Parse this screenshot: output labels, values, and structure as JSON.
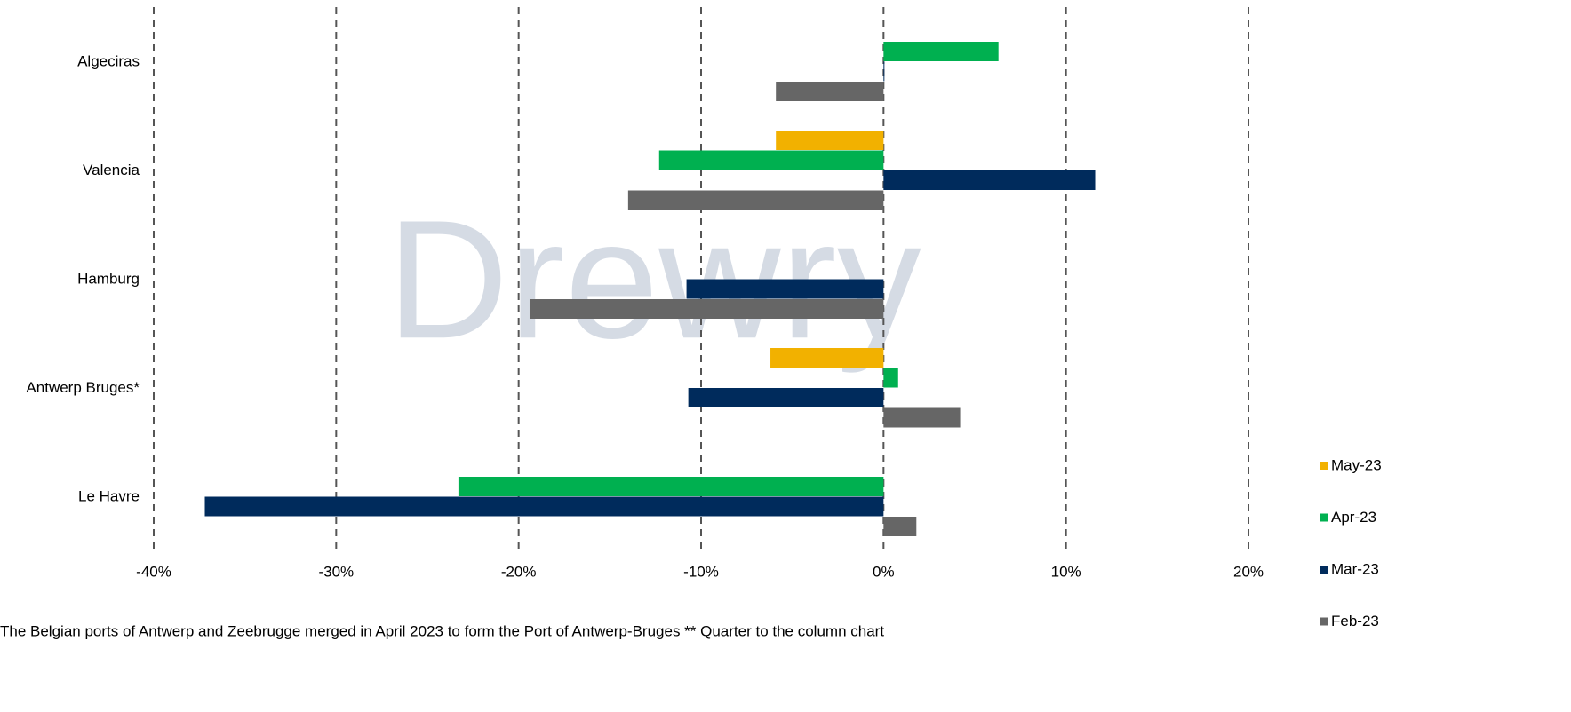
{
  "chart_data": {
    "type": "hbar",
    "watermark": "Drewry",
    "footnote": "The Belgian ports of Antwerp and Zeebrugge merged in April 2023 to form the Port of Antwerp-Bruges ** Quarter to the column chart",
    "categories": [
      "Algeciras",
      "Valencia",
      "Hamburg",
      "Antwerp Bruges*",
      "Le Havre"
    ],
    "series": [
      {
        "name": "May-23",
        "color": "#f2b100",
        "values": [
          null,
          -5.9,
          null,
          -6.2,
          null
        ]
      },
      {
        "name": "Apr-23",
        "color": "#00b050",
        "values": [
          6.3,
          -12.3,
          null,
          0.8,
          -23.3
        ]
      },
      {
        "name": "Mar-23",
        "color": "#002b5c",
        "values": [
          0,
          11.6,
          -10.8,
          -10.7,
          -37.2
        ]
      },
      {
        "name": "Feb-23",
        "color": "#666666",
        "values": [
          -5.9,
          -14.0,
          -19.4,
          4.2,
          1.8
        ]
      }
    ],
    "xlim": [
      -40,
      20
    ],
    "xticks": [
      {
        "value": -40,
        "label": "-40%"
      },
      {
        "value": -30,
        "label": "-30%"
      },
      {
        "value": -20,
        "label": "-20%"
      },
      {
        "value": -10,
        "label": "-10%"
      },
      {
        "value": 0,
        "label": "0%"
      },
      {
        "value": 10,
        "label": "10%"
      },
      {
        "value": 20,
        "label": "20%"
      }
    ],
    "grid": true,
    "legend": "right"
  }
}
